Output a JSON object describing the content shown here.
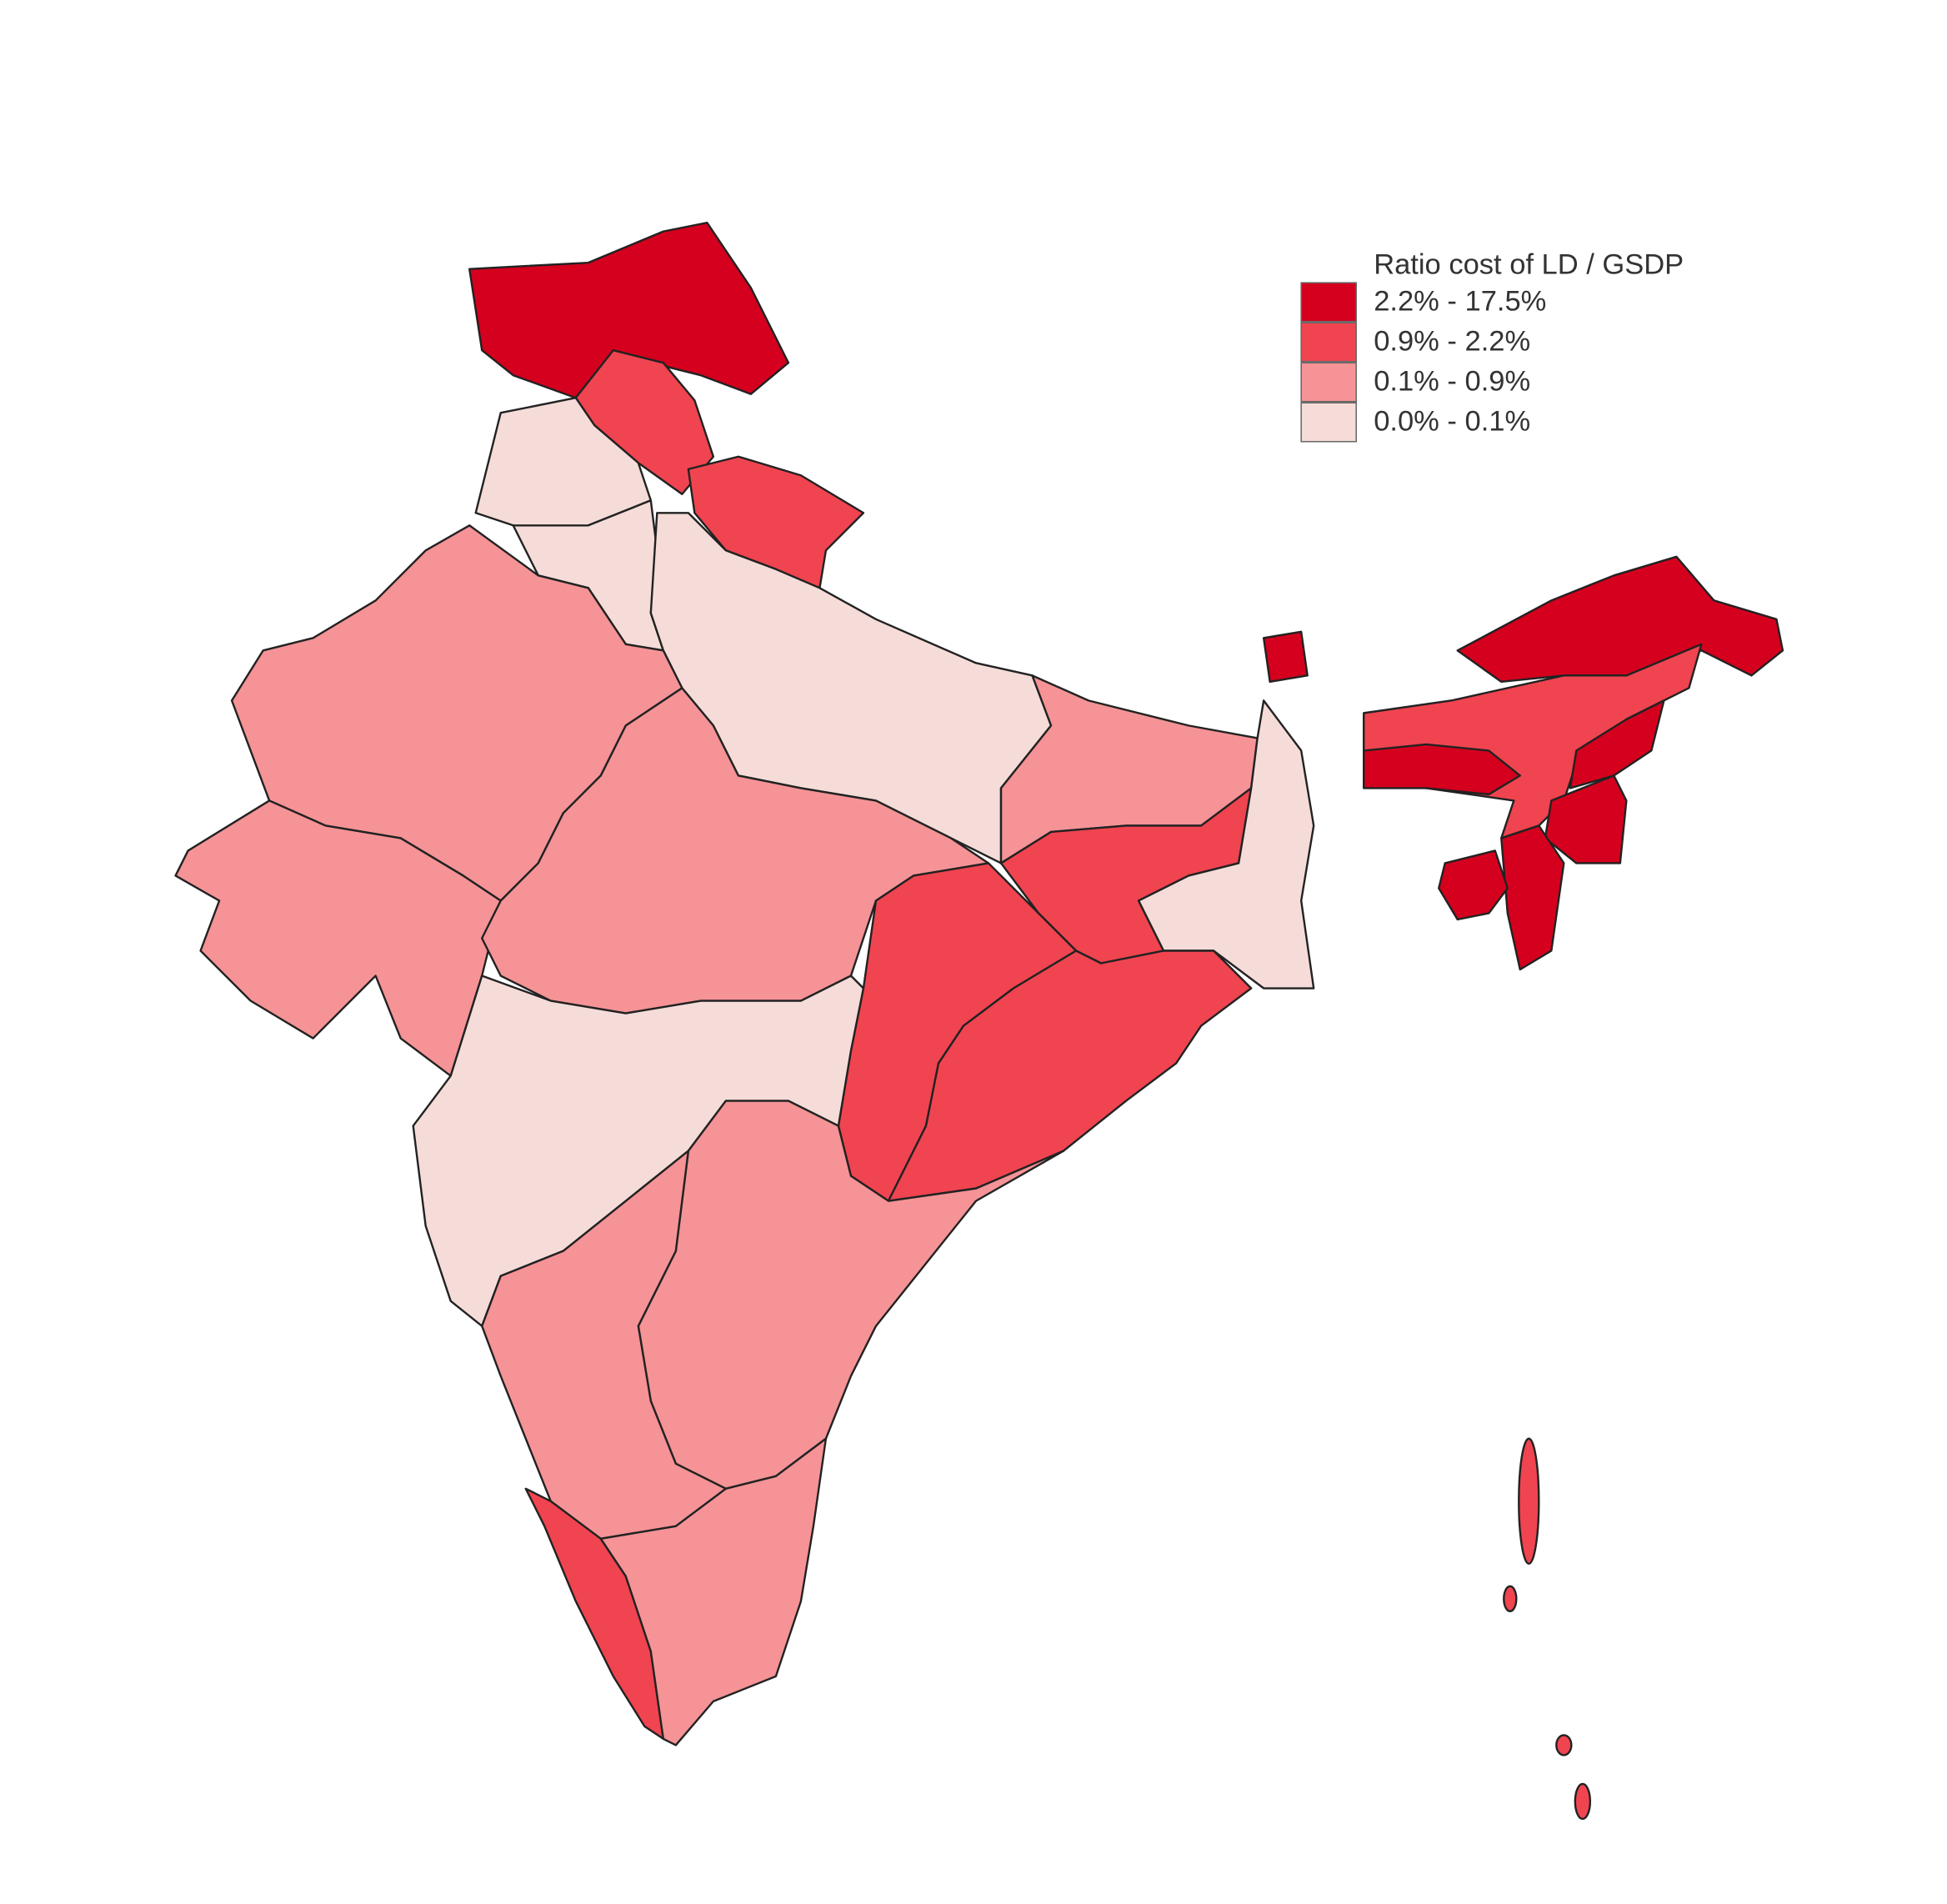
{
  "legend": {
    "title": "Ratio cost of LD / GSDP",
    "items": [
      {
        "label": "2.2% - 17.5%",
        "color": "#d4001e"
      },
      {
        "label": "0.9% - 2.2%",
        "color": "#f04450"
      },
      {
        "label": "0.1% - 0.9%",
        "color": "#f59396"
      },
      {
        "label": "0.0% - 0.1%",
        "color": "#f5dcd8"
      }
    ]
  }
}
